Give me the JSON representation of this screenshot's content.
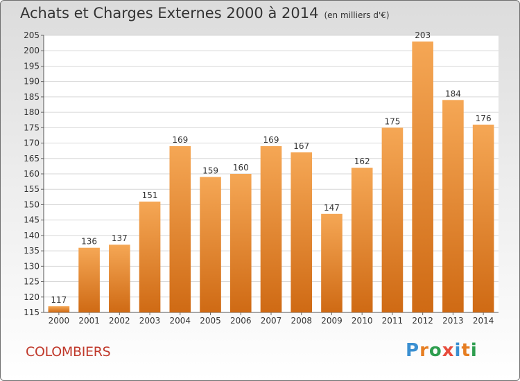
{
  "title": "Achats et Charges Externes 2000 à 2014",
  "subtitle": "(en milliers d'€)",
  "place": "COLOMBIERS",
  "logo": {
    "letters": [
      "P",
      "r",
      "o",
      "x",
      "i",
      "t",
      "i"
    ],
    "colors": [
      "#3a8fd1",
      "#e67e22",
      "#2e9e4f",
      "#e74c3c",
      "#3a8fd1",
      "#e67e22",
      "#2e9e4f"
    ]
  },
  "colors": {
    "bar_top": "#f5a755",
    "bar_bottom": "#cf6a14",
    "place": "#c0392b"
  },
  "chart_data": {
    "type": "bar",
    "title": "Achats et Charges Externes 2000 à 2014",
    "subtitle": "(en milliers d'€)",
    "categories": [
      "2000",
      "2001",
      "2002",
      "2003",
      "2004",
      "2005",
      "2006",
      "2007",
      "2008",
      "2009",
      "2010",
      "2011",
      "2012",
      "2013",
      "2014"
    ],
    "values": [
      117,
      136,
      137,
      151,
      169,
      159,
      160,
      169,
      167,
      147,
      162,
      175,
      203,
      184,
      176
    ],
    "ylim": [
      115,
      205
    ],
    "yticks": [
      115,
      120,
      125,
      130,
      135,
      140,
      145,
      150,
      155,
      160,
      165,
      170,
      175,
      180,
      185,
      190,
      195,
      200,
      205
    ],
    "grid": true,
    "xlabel": "",
    "ylabel": ""
  }
}
